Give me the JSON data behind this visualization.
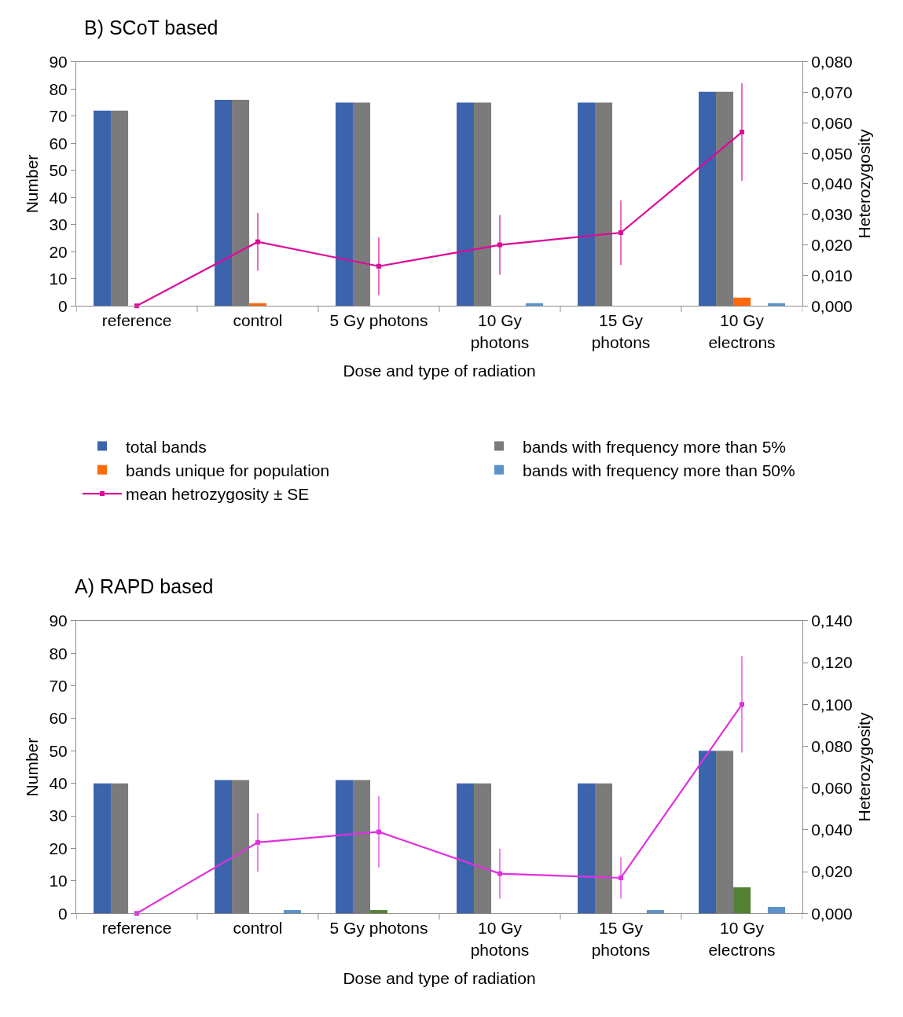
{
  "chart_data": [
    {
      "type": "bar",
      "title": "B) SCoT based",
      "xlabel": "Dose and type of radiation",
      "ylabel": "Number",
      "y2label": "Heterozygosity",
      "categories": [
        "reference",
        "control",
        "5 Gy photons",
        "10 Gy photons",
        "15 Gy photons",
        "10 Gy electrons"
      ],
      "series": [
        {
          "name": "total bands",
          "color": "#3c64ad",
          "values": [
            72,
            76,
            75,
            75,
            75,
            79
          ]
        },
        {
          "name": "bands with frequency more than 5%",
          "color": "#7b7b7b",
          "values": [
            72,
            76,
            75,
            75,
            75,
            79
          ]
        },
        {
          "name": "bands unique for population",
          "color": "#fe6a0a",
          "values": [
            0,
            1,
            0,
            0,
            0,
            3
          ]
        },
        {
          "name": "bands with frequency more than 50%",
          "color": "#5b93c9",
          "values": [
            0,
            0,
            0,
            1,
            0,
            1
          ]
        },
        {
          "name": "mean hetrozygosity ± SE",
          "type": "line",
          "axis": "y2",
          "color": "#dc0a9a",
          "marker": "square",
          "values": [
            0,
            0.021,
            0.013,
            0.02,
            0.024,
            0.057
          ],
          "errors": [
            null,
            0.0095,
            0.0095,
            0.0098,
            0.0106,
            0.016
          ]
        }
      ],
      "ylim": [
        0,
        90
      ],
      "yticks": [
        0,
        10,
        20,
        30,
        40,
        50,
        60,
        70,
        80,
        90
      ],
      "y2lim": [
        0,
        0.08
      ],
      "y2ticks": [
        {
          "value": 0,
          "label": "0,000"
        },
        {
          "value": 0.01,
          "label": "0,010"
        },
        {
          "value": 0.02,
          "label": "0,020"
        },
        {
          "value": 0.03,
          "label": "0,030"
        },
        {
          "value": 0.04,
          "label": "0,040"
        },
        {
          "value": 0.05,
          "label": "0,050"
        },
        {
          "value": 0.06,
          "label": "0,060"
        },
        {
          "value": 0.07,
          "label": "0,070"
        },
        {
          "value": 0.08,
          "label": "0,080"
        }
      ],
      "grid": false,
      "legend": "bottom"
    },
    {
      "type": "bar",
      "title": "A) RAPD based",
      "xlabel": "Dose and type of radiation",
      "ylabel": "Number",
      "y2label": "Heterozygosity",
      "categories": [
        "reference",
        "control",
        "5 Gy photons",
        "10 Gy photons",
        "15 Gy photons",
        "10 Gy electrons"
      ],
      "series": [
        {
          "color": "#3c64ad",
          "values": [
            40,
            41,
            41,
            40,
            40,
            50
          ]
        },
        {
          "color": "#7b7b7b",
          "values": [
            40,
            41,
            41,
            40,
            40,
            50
          ]
        },
        {
          "color": "#548235",
          "values": [
            0,
            0,
            1,
            0,
            0,
            8
          ]
        },
        {
          "color": "#5b93c9",
          "values": [
            0,
            1,
            0,
            0,
            1,
            2
          ]
        },
        {
          "type": "line",
          "axis": "y2",
          "color": "#e030e0",
          "marker": "square",
          "values": [
            0,
            0.034,
            0.039,
            0.019,
            0.017,
            0.1
          ],
          "errors": [
            null,
            0.014,
            0.017,
            0.012,
            0.01,
            0.023
          ]
        }
      ],
      "ylim": [
        0,
        90
      ],
      "yticks": [
        0,
        10,
        20,
        30,
        40,
        50,
        60,
        70,
        80,
        90
      ],
      "y2lim": [
        0,
        0.14
      ],
      "y2ticks": [
        {
          "value": 0,
          "label": "0,000"
        },
        {
          "value": 0.02,
          "label": "0,020"
        },
        {
          "value": 0.04,
          "label": "0,040"
        },
        {
          "value": 0.06,
          "label": "0,060"
        },
        {
          "value": 0.08,
          "label": "0,080"
        },
        {
          "value": 0.1,
          "label": "0,100"
        },
        {
          "value": 0.12,
          "label": "0,120"
        },
        {
          "value": 0.14,
          "label": "0,140"
        }
      ],
      "grid": false,
      "legend": false
    }
  ]
}
